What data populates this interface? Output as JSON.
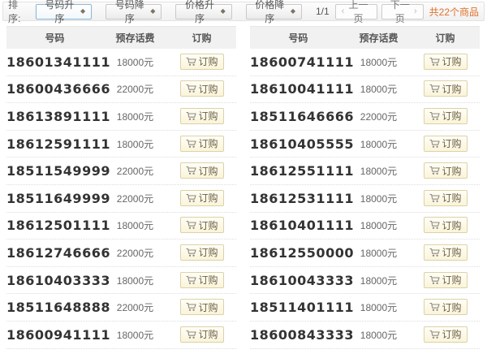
{
  "toolbar": {
    "sort_label": "排序:",
    "sort_buttons": [
      {
        "label": "号码升序",
        "active": true
      },
      {
        "label": "号码降序",
        "active": false
      },
      {
        "label": "价格升序",
        "active": false
      },
      {
        "label": "价格降序",
        "active": false
      }
    ],
    "pagination": {
      "page_indicator": "1/1",
      "prev_label": "上一页",
      "next_label": "下一页",
      "total_label": "共22个商品"
    }
  },
  "table": {
    "headers": [
      "号码",
      "预存话费",
      "订购"
    ],
    "order_button_label": "订购",
    "left_rows": [
      {
        "number": "18601341111",
        "price": "18000元"
      },
      {
        "number": "18600436666",
        "price": "22000元"
      },
      {
        "number": "18613891111",
        "price": "18000元"
      },
      {
        "number": "18612591111",
        "price": "18000元"
      },
      {
        "number": "18511549999",
        "price": "22000元"
      },
      {
        "number": "18511649999",
        "price": "22000元"
      },
      {
        "number": "18612501111",
        "price": "18000元"
      },
      {
        "number": "18612746666",
        "price": "22000元"
      },
      {
        "number": "18610403333",
        "price": "18000元"
      },
      {
        "number": "18511648888",
        "price": "22000元"
      },
      {
        "number": "18600941111",
        "price": "18000元"
      }
    ],
    "right_rows": [
      {
        "number": "18600741111",
        "price": "18000元"
      },
      {
        "number": "18610041111",
        "price": "18000元"
      },
      {
        "number": "18511646666",
        "price": "22000元"
      },
      {
        "number": "18610405555",
        "price": "18000元"
      },
      {
        "number": "18612551111",
        "price": "18000元"
      },
      {
        "number": "18612531111",
        "price": "18000元"
      },
      {
        "number": "18610401111",
        "price": "18000元"
      },
      {
        "number": "18612550000",
        "price": "18000元"
      },
      {
        "number": "18610043333",
        "price": "18000元"
      },
      {
        "number": "18511401111",
        "price": "18000元"
      },
      {
        "number": "18600843333",
        "price": "18000元"
      }
    ]
  },
  "icons": {
    "sort_diamond": "◆",
    "prev_arrow": "‹",
    "next_arrow": "›",
    "cart": "cart-icon"
  },
  "colors": {
    "accent_orange": "#e0702a",
    "active_sort_border": "#8fb9d6",
    "order_button_bg": "#faf4da",
    "order_button_border": "#dcd2a6",
    "header_bg": "#f1f1f1",
    "number_text": "#333333",
    "price_text": "#666666"
  }
}
